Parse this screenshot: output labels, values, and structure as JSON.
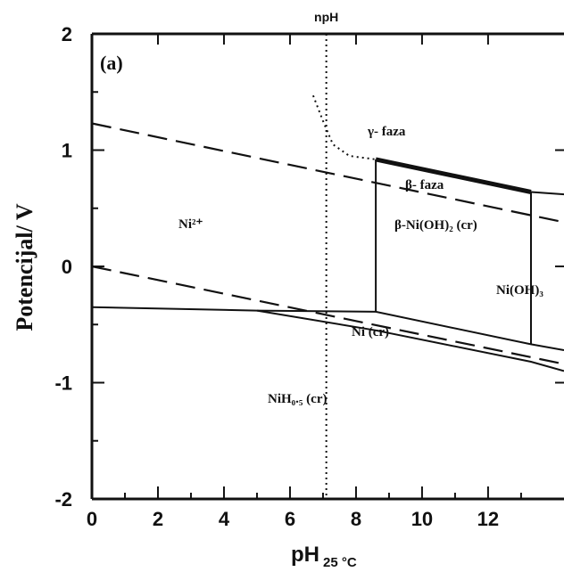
{
  "chart_data": {
    "type": "line",
    "panel_label": "(a)",
    "xlabel_main": "pH",
    "xlabel_sub": "25 °C",
    "ylabel": "Potencijal/ V",
    "xlim": [
      0,
      14.3
    ],
    "ylim": [
      -2,
      2
    ],
    "xticks": [
      "0",
      "2",
      "4",
      "6",
      "8",
      "10",
      "12"
    ],
    "xtick_values": [
      0,
      2,
      4,
      6,
      8,
      10,
      12
    ],
    "yticks": [
      "2",
      "1",
      "0",
      "-1",
      "-2"
    ],
    "ytick_values": [
      2,
      1,
      0,
      -1,
      -2
    ],
    "npH": {
      "label": "npH",
      "x": 7.1
    },
    "series": [
      {
        "style": "dashed",
        "x": [
          0,
          14.3
        ],
        "y": [
          1.23,
          0.38
        ]
      },
      {
        "style": "dashed",
        "x": [
          0,
          14.3
        ],
        "y": [
          0.0,
          -0.84
        ]
      },
      {
        "style": "solid",
        "x": [
          0,
          5,
          8.6,
          13.3,
          14.3
        ],
        "y": [
          -0.35,
          -0.38,
          -0.39,
          -0.67,
          -0.72
        ]
      },
      {
        "style": "solid",
        "x": [
          5,
          8.6,
          13.3,
          14.3
        ],
        "y": [
          -0.38,
          -0.55,
          -0.82,
          -0.9
        ]
      },
      {
        "style": "solid",
        "x": [
          8.6,
          8.6
        ],
        "y": [
          -0.39,
          0.92
        ]
      },
      {
        "style": "solid",
        "x": [
          13.3,
          13.3
        ],
        "y": [
          -0.67,
          0.64
        ]
      },
      {
        "style": "thick",
        "x": [
          8.6,
          13.3
        ],
        "y": [
          0.92,
          0.64
        ]
      },
      {
        "style": "solid",
        "x": [
          13.3,
          14.3
        ],
        "y": [
          0.64,
          0.62
        ]
      },
      {
        "style": "dotted",
        "x": [
          6.7,
          7.0,
          7.3,
          7.8,
          8.6
        ],
        "y": [
          1.47,
          1.25,
          1.05,
          0.95,
          0.92
        ]
      }
    ],
    "regions": {
      "gamma": "γ- faza",
      "beta": "β- faza",
      "ni2": "Ni²⁺",
      "beta_ni_oh": "β-Ni(OH)₂ (cr)",
      "ni_oh3": "Ni(OH)₃",
      "ni_cr": "Ni (cr)",
      "nih": "NiH₀.₅ (cr)"
    }
  }
}
